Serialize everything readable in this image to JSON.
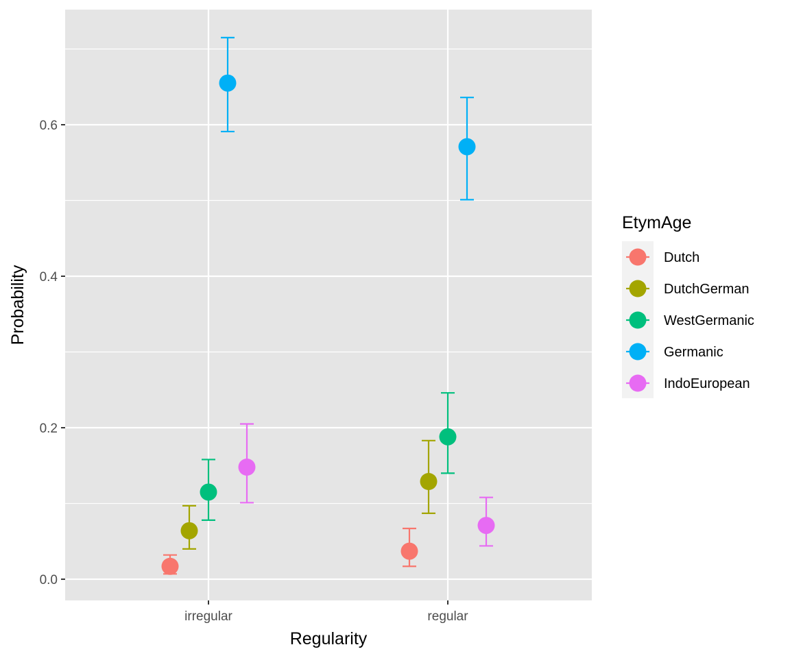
{
  "chart_data": {
    "type": "scatter",
    "title": "",
    "xlabel": "Regularity",
    "ylabel": "Probability",
    "categories": [
      "irregular",
      "regular"
    ],
    "y_ticks": [
      0.0,
      0.2,
      0.4,
      0.6
    ],
    "y_tick_labels": [
      "0.0",
      "0.2",
      "0.4",
      "0.6"
    ],
    "ylim": [
      -0.028,
      0.752
    ],
    "grid": true,
    "error_bars": true,
    "legend": {
      "title": "EtymAge",
      "placement": "right"
    },
    "series": [
      {
        "name": "Dutch",
        "color": "#F8766D",
        "values": [
          0.017,
          0.037
        ],
        "lower": [
          0.007,
          0.017
        ],
        "upper": [
          0.032,
          0.067
        ]
      },
      {
        "name": "DutchGerman",
        "color": "#A3A500",
        "values": [
          0.064,
          0.129
        ],
        "lower": [
          0.04,
          0.087
        ],
        "upper": [
          0.097,
          0.183
        ]
      },
      {
        "name": "WestGermanic",
        "color": "#00BF7D",
        "values": [
          0.115,
          0.188
        ],
        "lower": [
          0.078,
          0.14
        ],
        "upper": [
          0.158,
          0.246
        ]
      },
      {
        "name": "Germanic",
        "color": "#00B0F6",
        "values": [
          0.655,
          0.571
        ],
        "lower": [
          0.591,
          0.501
        ],
        "upper": [
          0.715,
          0.636
        ]
      },
      {
        "name": "IndoEuropean",
        "color": "#E76BF3",
        "values": [
          0.148,
          0.071
        ],
        "lower": [
          0.101,
          0.044
        ],
        "upper": [
          0.205,
          0.108
        ]
      }
    ]
  }
}
